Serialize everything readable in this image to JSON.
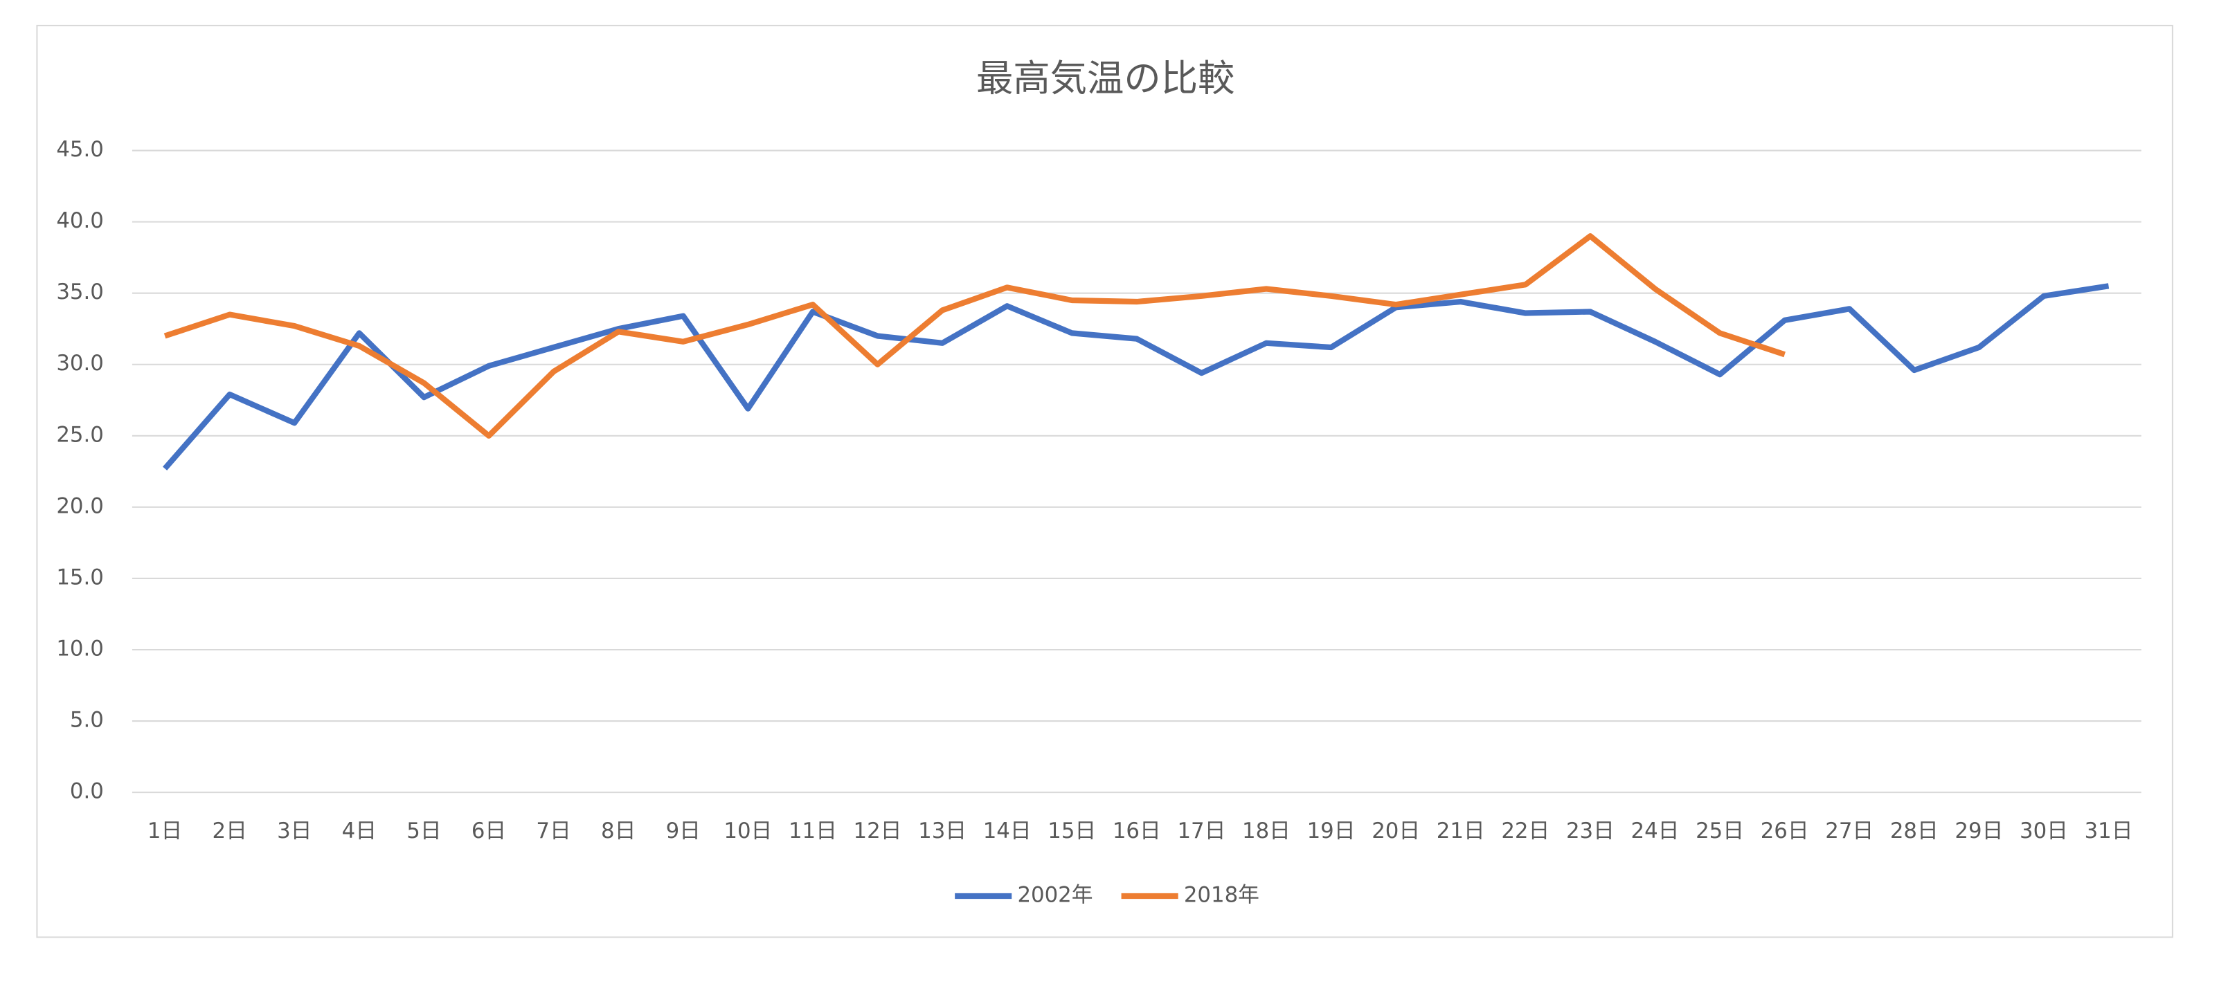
{
  "chart_data": {
    "type": "line",
    "title": "最高気温の比較",
    "categories": [
      "1日",
      "2日",
      "3日",
      "4日",
      "5日",
      "6日",
      "7日",
      "8日",
      "9日",
      "10日",
      "11日",
      "12日",
      "13日",
      "14日",
      "15日",
      "16日",
      "17日",
      "18日",
      "19日",
      "20日",
      "21日",
      "22日",
      "23日",
      "24日",
      "25日",
      "26日",
      "27日",
      "28日",
      "29日",
      "30日",
      "31日"
    ],
    "series": [
      {
        "name": "2002年",
        "color": "#4472c4",
        "values": [
          22.7,
          27.9,
          25.9,
          32.2,
          27.7,
          29.9,
          31.2,
          32.5,
          33.4,
          26.9,
          33.7,
          32.0,
          31.5,
          34.1,
          32.2,
          31.8,
          29.4,
          31.5,
          31.2,
          34.0,
          34.4,
          33.6,
          33.7,
          31.6,
          29.3,
          33.1,
          33.9,
          29.6,
          31.2,
          34.8,
          35.5
        ]
      },
      {
        "name": "2018年",
        "color": "#ed7d31",
        "values": [
          32.0,
          33.5,
          32.7,
          31.3,
          28.7,
          25.0,
          29.5,
          32.3,
          31.6,
          32.8,
          34.2,
          30.0,
          33.8,
          35.4,
          34.5,
          34.4,
          34.8,
          35.3,
          34.8,
          34.2,
          34.9,
          35.6,
          39.0,
          35.3,
          32.2,
          30.7,
          null,
          null,
          null,
          null,
          null
        ]
      }
    ],
    "ylim": [
      0,
      45
    ],
    "yticks": [
      {
        "value": 0,
        "label": "0.0"
      },
      {
        "value": 5,
        "label": "5.0"
      },
      {
        "value": 10,
        "label": "10.0"
      },
      {
        "value": 15,
        "label": "15.0"
      },
      {
        "value": 20,
        "label": "20.0"
      },
      {
        "value": 25,
        "label": "25.0"
      },
      {
        "value": 30,
        "label": "30.0"
      },
      {
        "value": 35,
        "label": "35.0"
      },
      {
        "value": 40,
        "label": "40.0"
      },
      {
        "value": 45,
        "label": "45.0"
      }
    ],
    "grid": true,
    "legend": "bottom"
  }
}
